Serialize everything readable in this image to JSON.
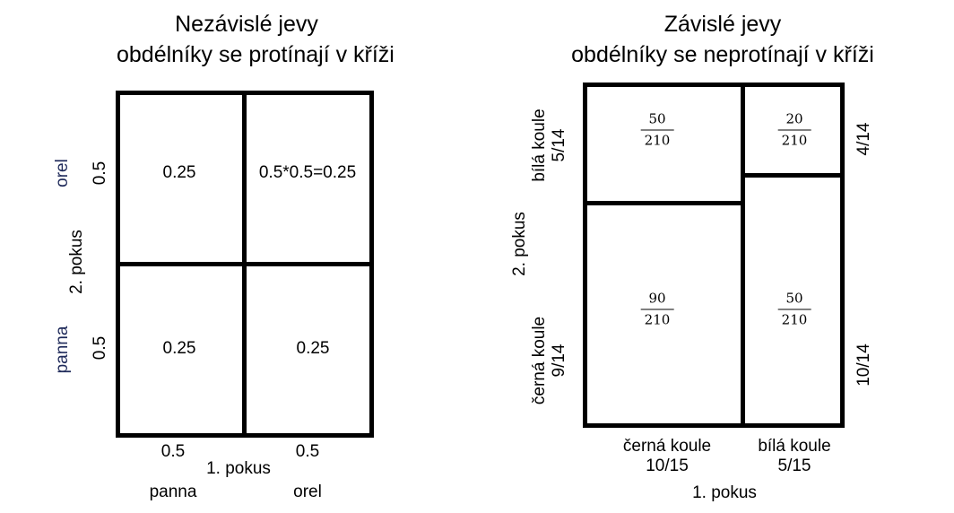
{
  "left": {
    "title_line1": "Nezávislé jevy",
    "title_line2": "obdélníky se protínají v kříži",
    "cells": {
      "top_left": "0.25",
      "top_right": "0.5*0.5=0.25",
      "bottom_left": "0.25",
      "bottom_right": "0.25"
    },
    "y_axis": {
      "label": "2. pokus",
      "top_outcome": "orel",
      "top_prob": "0.5",
      "bottom_outcome": "panna",
      "bottom_prob": "0.5"
    },
    "x_axis": {
      "label": "1. pokus",
      "left_prob": "0.5",
      "right_prob": "0.5",
      "left_outcome": "panna",
      "right_outcome": "orel"
    }
  },
  "right": {
    "title_line1": "Závislé jevy",
    "title_line2": "obdélníky se neprotínají v kříži",
    "cells": {
      "left_top": {
        "num": "50",
        "den": "210"
      },
      "left_bottom": {
        "num": "90",
        "den": "210"
      },
      "right_top": {
        "num": "20",
        "den": "210"
      },
      "right_bottom": {
        "num": "50",
        "den": "210"
      }
    },
    "y_axis": {
      "label": "2. pokus",
      "upper_outcome": "bílá koule",
      "upper_prob": "5/14",
      "lower_outcome": "černá koule",
      "lower_prob": "9/14",
      "right_top_prob": "4/14",
      "right_bottom_prob": "10/14"
    },
    "x_axis": {
      "label": "1. pokus",
      "left_outcome": "černá koule",
      "left_prob": "10/15",
      "right_outcome": "bílá koule",
      "right_prob": "5/15"
    }
  }
}
